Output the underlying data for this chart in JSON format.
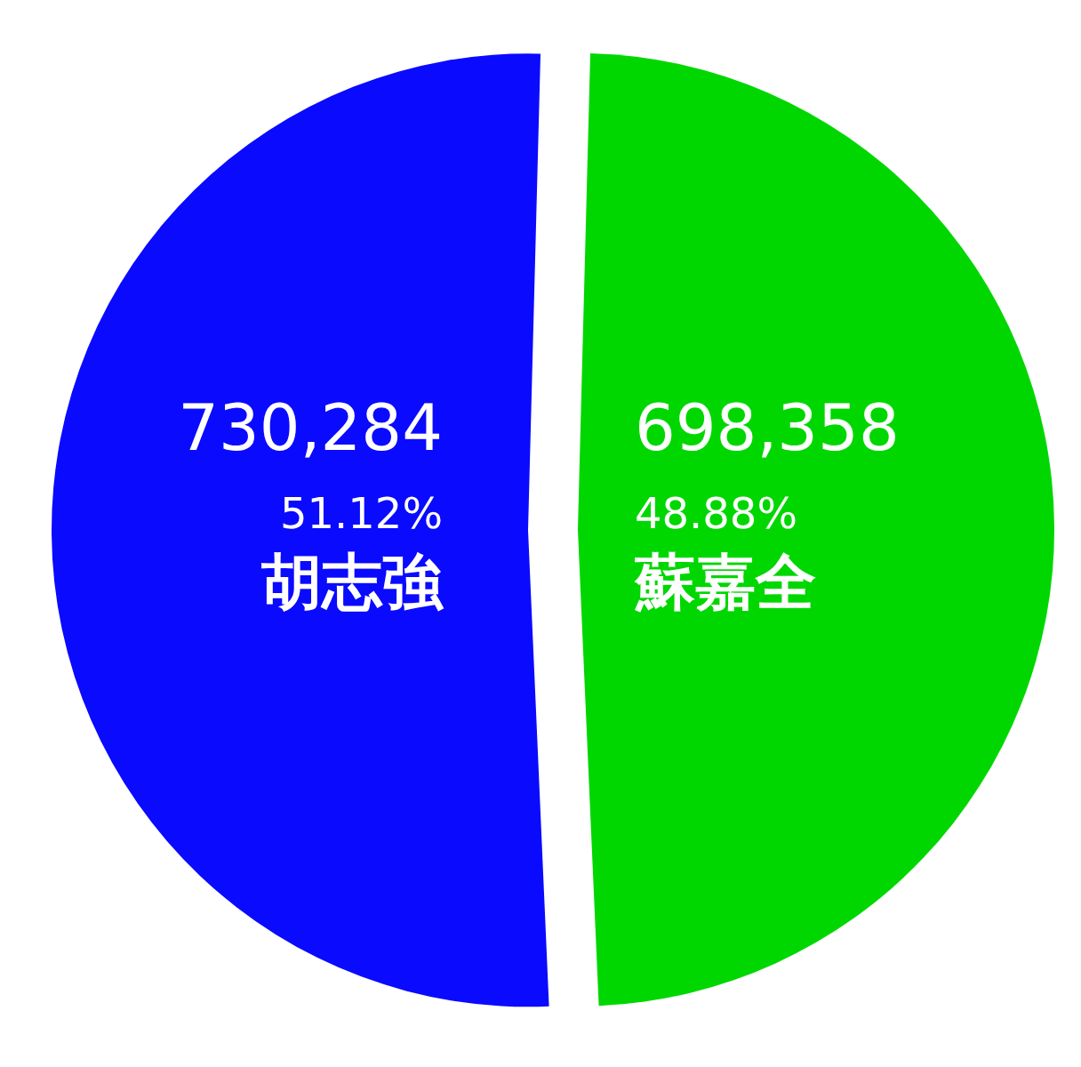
{
  "chart_data": {
    "type": "pie",
    "categories": [
      "蘇嘉全",
      "胡志強"
    ],
    "values": [
      698358,
      730284
    ],
    "colors": [
      "#00d700",
      "#0a0aff"
    ],
    "value_labels": [
      "698,358",
      "730,284"
    ],
    "annotations": [
      "48.88%",
      "51.12%"
    ]
  }
}
